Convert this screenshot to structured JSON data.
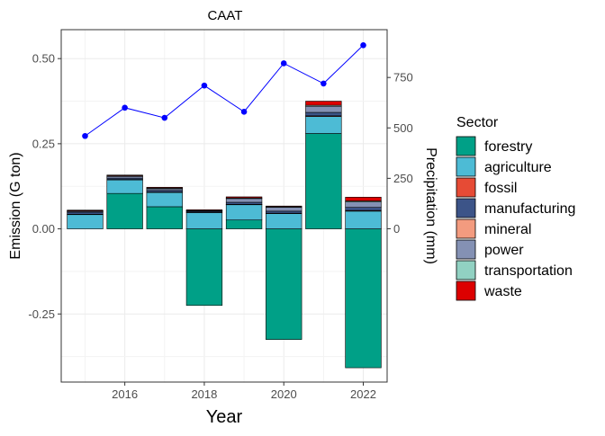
{
  "chart_data": {
    "type": "bar",
    "title": "CAAT",
    "xlabel": "Year",
    "ylabel": "Emission (G ton)",
    "y2label": "Precipitation (mm)",
    "x": [
      2015,
      2016,
      2017,
      2018,
      2019,
      2020,
      2021,
      2022
    ],
    "x_ticks": [
      2016,
      2018,
      2020,
      2022
    ],
    "x_tick_labels": [
      "2016",
      "2018",
      "2020",
      "2022"
    ],
    "xlim": [
      2014.4,
      2022.6
    ],
    "ylim": [
      -0.45,
      0.585
    ],
    "y_ticks": [
      -0.25,
      0.0,
      0.25,
      0.5
    ],
    "y_tick_labels": [
      "-0.25",
      "0.00",
      "0.25",
      "0.50"
    ],
    "y2lim": [
      -760,
      987
    ],
    "y2_ticks": [
      0,
      250,
      500,
      750
    ],
    "y2_tick_labels": [
      "0",
      "250",
      "500",
      "750"
    ],
    "stacked": true,
    "series": [
      {
        "name": "forestry",
        "color": "#00A087",
        "values": [
          0.0,
          0.104,
          0.065,
          -0.225,
          0.026,
          -0.325,
          0.28,
          -0.408
        ]
      },
      {
        "name": "agriculture",
        "color": "#4DBBD5",
        "values": [
          0.042,
          0.04,
          0.042,
          0.048,
          0.045,
          0.045,
          0.05,
          0.052
        ]
      },
      {
        "name": "fossil",
        "color": "#E64B35",
        "values": [
          0.001,
          0.001,
          0.001,
          0.001,
          0.001,
          0.001,
          0.002,
          0.002
        ]
      },
      {
        "name": "manufacturing",
        "color": "#3C5488",
        "values": [
          0.006,
          0.004,
          0.005,
          0.003,
          0.006,
          0.006,
          0.01,
          0.009
        ]
      },
      {
        "name": "mineral",
        "color": "#F39B7F",
        "values": [
          0.0,
          0.0,
          0.0,
          0.0,
          0.0,
          0.0,
          0.0,
          0.0
        ]
      },
      {
        "name": "power",
        "color": "#8491B4",
        "values": [
          0.003,
          0.005,
          0.005,
          0.001,
          0.011,
          0.011,
          0.018,
          0.016
        ]
      },
      {
        "name": "transportation",
        "color": "#91D1C2",
        "values": [
          0.001,
          0.002,
          0.002,
          0.001,
          0.002,
          0.002,
          0.003,
          0.003
        ]
      },
      {
        "name": "waste",
        "color": "#DC0000",
        "values": [
          0.002,
          0.002,
          0.002,
          0.002,
          0.003,
          0.002,
          0.012,
          0.011
        ]
      }
    ],
    "line": {
      "name": "Precipitation",
      "color": "#0000FF",
      "x": [
        2015,
        2016,
        2017,
        2018,
        2019,
        2020,
        2021,
        2022
      ],
      "values": [
        460,
        600,
        550,
        710,
        580,
        820,
        720,
        910
      ]
    },
    "legend": {
      "title": "Sector",
      "position": "right"
    },
    "grid": true
  }
}
